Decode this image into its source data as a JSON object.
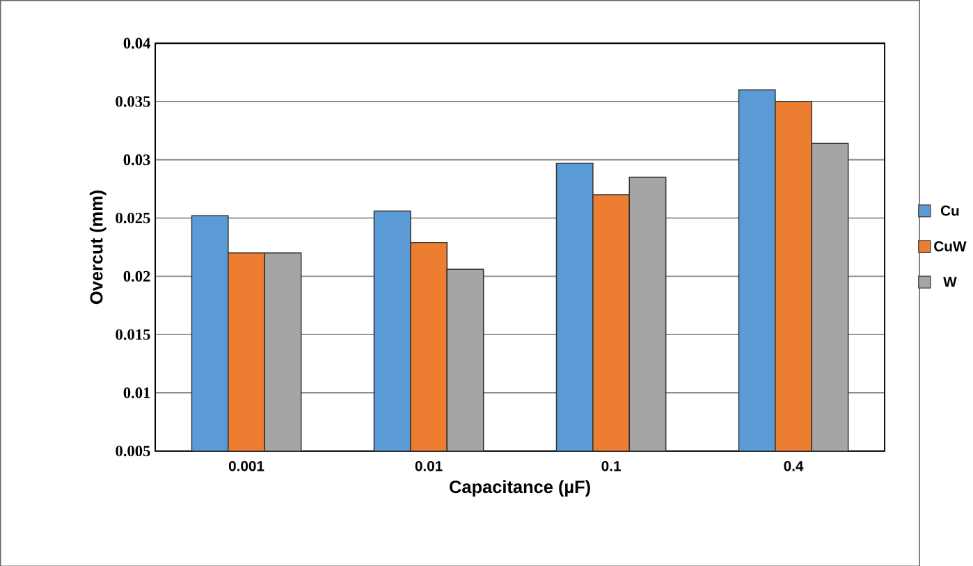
{
  "chart_data": {
    "type": "bar",
    "xlabel": "Capacitance (µF)",
    "ylabel": "Overcut (mm)",
    "categories": [
      "0.001",
      "0.01",
      "0.1",
      "0.4"
    ],
    "series": [
      {
        "name": "Cu",
        "color": "#5b9bd5",
        "values": [
          0.0252,
          0.0256,
          0.0297,
          0.036
        ]
      },
      {
        "name": "CuW",
        "color": "#ed7d31",
        "values": [
          0.022,
          0.0229,
          0.027,
          0.035
        ]
      },
      {
        "name": "W",
        "color": "#a5a5a5",
        "values": [
          0.022,
          0.0206,
          0.0285,
          0.0314
        ]
      }
    ],
    "ylim": [
      0.005,
      0.04
    ],
    "yticks": [
      0.005,
      0.01,
      0.015,
      0.02,
      0.025,
      0.03,
      0.035,
      0.04
    ],
    "grid": "y",
    "legend": "right"
  }
}
